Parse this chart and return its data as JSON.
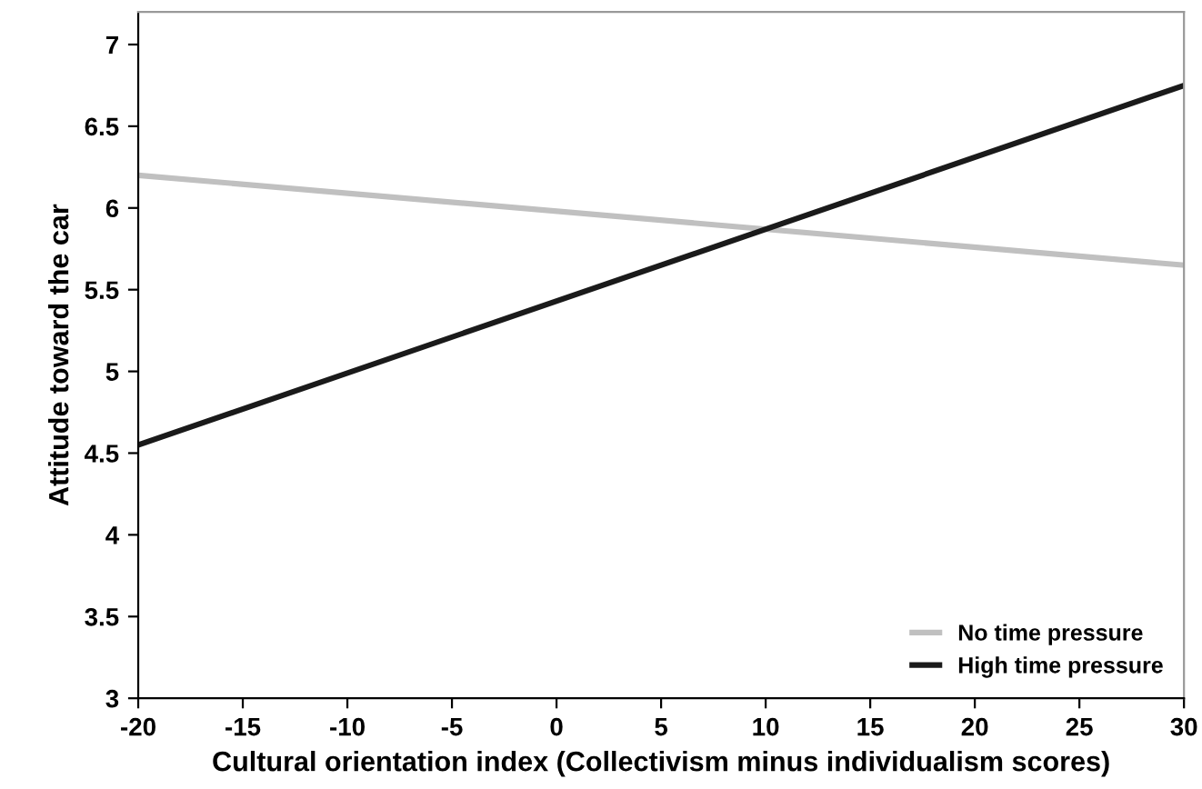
{
  "chart_data": {
    "type": "line",
    "xlabel": "Cultural orientation index (Collectivism minus individualism scores)",
    "ylabel": "Attitude toward the car",
    "x": [
      -20,
      30
    ],
    "series": [
      {
        "name": "No time pressure",
        "color": "#c0c0c0",
        "values": [
          6.2,
          5.65
        ]
      },
      {
        "name": "High time pressure",
        "color": "#1a1a1a",
        "values": [
          4.55,
          6.75
        ]
      }
    ],
    "xlim": [
      -20,
      30
    ],
    "xticks": [
      -20,
      -15,
      -10,
      -5,
      0,
      5,
      10,
      15,
      20,
      25,
      30
    ],
    "ylim": [
      3,
      7.2
    ],
    "yticks": [
      3,
      3.5,
      4,
      4.5,
      5,
      5.5,
      6,
      6.5,
      7
    ],
    "legend": "bottom right",
    "grid": false,
    "marker": "none",
    "line_style": "solid"
  }
}
